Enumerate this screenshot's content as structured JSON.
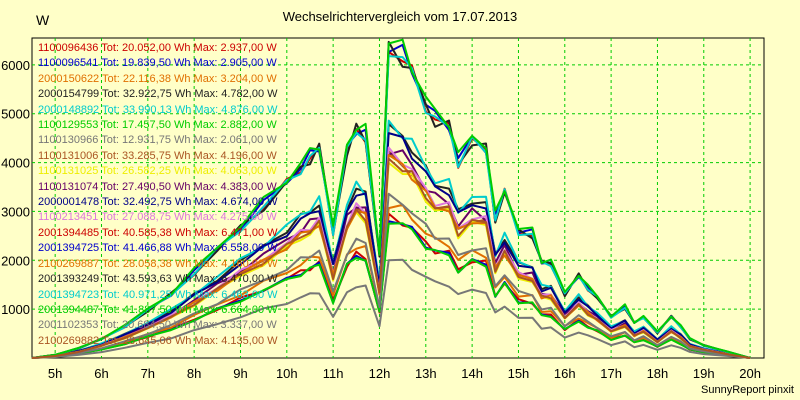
{
  "chart_data": {
    "type": "line",
    "title": "Wechselrichtervergleich vom 17.07.2013",
    "ylabel": "W",
    "xlabel": "",
    "credit": "SunnyReport pinxit",
    "x_ticks": [
      "5h",
      "6h",
      "7h",
      "8h",
      "9h",
      "10h",
      "11h",
      "12h",
      "13h",
      "14h",
      "15h",
      "16h",
      "17h",
      "18h",
      "19h",
      "20h"
    ],
    "y_ticks": [
      1000,
      2000,
      3000,
      4000,
      5000,
      6000
    ],
    "xlim": [
      4.5,
      20.3
    ],
    "ylim": [
      0,
      6550
    ],
    "grid": true,
    "legend_position": "top-left",
    "x": [
      4.5,
      5,
      5.5,
      6,
      6.5,
      7,
      7.5,
      8,
      8.5,
      9,
      9.5,
      10,
      10.3,
      10.5,
      10.7,
      11,
      11.3,
      11.5,
      11.7,
      12,
      12.2,
      12.5,
      12.7,
      13,
      13.2,
      13.5,
      13.7,
      14,
      14.3,
      14.5,
      14.7,
      15,
      15.3,
      15.5,
      15.7,
      16,
      16.3,
      16.5,
      16.7,
      17,
      17.3,
      17.5,
      17.7,
      18,
      18.3,
      18.5,
      18.7,
      19,
      19.5,
      20
    ],
    "series": [
      {
        "name": "1100096436",
        "label": "1100096436 Tot: 20.052,00 Wh Max: 2.937,00 W",
        "color": "#cc0000",
        "peak": 2937
      },
      {
        "name": "1100096541",
        "label": "1100096541 Tot: 19.839,50 Wh Max: 2.905,00 W",
        "color": "#0000cc",
        "peak": 2905
      },
      {
        "name": "2000150622",
        "label": "2000150622 Tot: 22.116,38 Wh Max: 3.204,00 W",
        "color": "#e07000",
        "peak": 3204
      },
      {
        "name": "2000154799",
        "label": "2000154799 Tot: 32.922,75 Wh Max: 4.782,00 W",
        "color": "#222222",
        "peak": 4782
      },
      {
        "name": "2000148892",
        "label": "2000148892 Tot: 33.990,13 Wh Max: 4.876,00 W",
        "color": "#00cccc",
        "peak": 4876
      },
      {
        "name": "1100129553",
        "label": "1100129553 Tot: 17.457,50 Wh Max: 2.882,00 W",
        "color": "#00cc00",
        "peak": 2882
      },
      {
        "name": "1100130966",
        "label": "1100130966 Tot: 12.931,75 Wh Max: 2.061,00 W",
        "color": "#777777",
        "peak": 2061
      },
      {
        "name": "1100131006",
        "label": "1100131006 Tot: 33.285,75 Wh Max: 4.196,00 W",
        "color": "#aa5522",
        "peak": 4196
      },
      {
        "name": "1100131025",
        "label": "1100131025 Tot: 26.582,25 Wh Max: 4.063,00 W",
        "color": "#eeee00",
        "peak": 4063
      },
      {
        "name": "1100131074",
        "label": "1100131074 Tot: 27.490,50 Wh Max: 4.383,00 W",
        "color": "#660066",
        "peak": 4383
      },
      {
        "name": "2000001478",
        "label": "2000001478 Tot: 32.492,75 Wh Max: 4.674,00 W",
        "color": "#000088",
        "peak": 4674
      },
      {
        "name": "1100213451",
        "label": "1100213451 Tot: 27.088,75 Wh Max: 4.275,00 W",
        "color": "#dd77dd",
        "peak": 4275
      },
      {
        "name": "2001394485",
        "label": "2001394485 Tot: 40.585,38 Wh Max: 6.471,00 W",
        "color": "#cc0000",
        "peak": 6471
      },
      {
        "name": "2001394725",
        "label": "2001394725 Tot: 41.466,88 Wh Max: 6.558,00 W",
        "color": "#0000cc",
        "peak": 6558
      },
      {
        "name": "2100269887",
        "label": "2100269887 Tot: 28.058,38 Wh Max: 4.160,00 W",
        "color": "#e07000",
        "peak": 4160
      },
      {
        "name": "2001393249",
        "label": "2001393249 Tot: 43.593,63 Wh Max: 6.470,00 W",
        "color": "#222222",
        "peak": 6470
      },
      {
        "name": "2001394723",
        "label": "2001394723 Tot: 40.971,25 Wh Max: 6.463,00 W",
        "color": "#00cccc",
        "peak": 6463
      },
      {
        "name": "2001394487",
        "label": "2001394487 Tot: 41.887,50 Wh Max: 6.664,00 W",
        "color": "#00cc00",
        "peak": 6664
      },
      {
        "name": "2001102353",
        "label": "2001102353 Tot: 20.684,50 Wh Max: 3.337,00 W",
        "color": "#777777",
        "peak": 3337
      },
      {
        "name": "2100269882",
        "label": "2100269882 Tot: 28.645,06 Wh Max: 4.135,00 W",
        "color": "#aa5522",
        "peak": 4135
      }
    ],
    "shape": [
      0,
      0.01,
      0.03,
      0.06,
      0.1,
      0.15,
      0.2,
      0.27,
      0.34,
      0.41,
      0.48,
      0.55,
      0.6,
      0.63,
      0.66,
      0.4,
      0.65,
      0.72,
      0.7,
      0.32,
      0.98,
      0.95,
      0.9,
      0.8,
      0.75,
      0.73,
      0.62,
      0.68,
      0.66,
      0.44,
      0.52,
      0.4,
      0.39,
      0.3,
      0.3,
      0.2,
      0.26,
      0.22,
      0.19,
      0.13,
      0.16,
      0.11,
      0.13,
      0.08,
      0.13,
      0.1,
      0.06,
      0.04,
      0.02,
      0
    ]
  }
}
